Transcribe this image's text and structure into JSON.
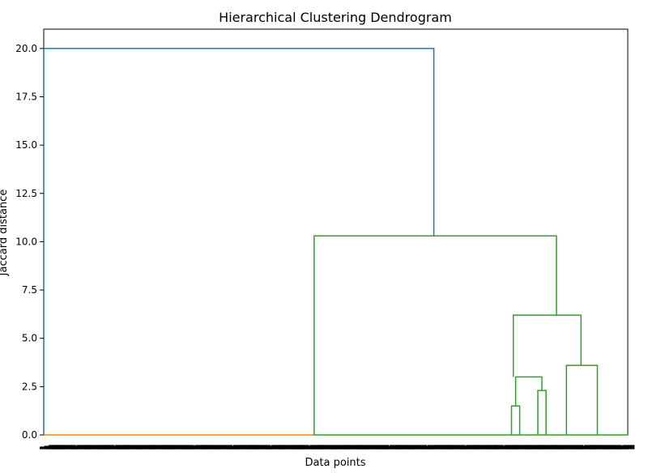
{
  "chart_data": {
    "type": "dendrogram",
    "title": "Hierarchical Clustering Dendrogram",
    "xlabel": "Data points",
    "ylabel": "Jaccard distance",
    "ylim": [
      0,
      21
    ],
    "yticks": [
      "0.0",
      "2.5",
      "5.0",
      "7.5",
      "10.0",
      "12.5",
      "15.0",
      "17.5",
      "20.0"
    ],
    "ytick_values": [
      0,
      2.5,
      5,
      7.5,
      10,
      12.5,
      15,
      17.5,
      20
    ],
    "grid": false,
    "links": [
      {
        "x": [
          0,
          0,
          66.8,
          66.8
        ],
        "y": [
          0,
          20.0,
          20.0,
          10.3
        ],
        "color": "#1f77b4"
      },
      {
        "x": [
          0,
          0,
          46.3,
          46.3
        ],
        "y": [
          0,
          0,
          0,
          0
        ],
        "color": "#ff7f0e"
      },
      {
        "x": [
          46.3,
          46.3,
          87.8,
          87.8
        ],
        "y": [
          0,
          10.3,
          10.3,
          6.2
        ],
        "color": "#2ca02c"
      },
      {
        "x": [
          80.4,
          80.4,
          92.0,
          92.0
        ],
        "y": [
          3.0,
          6.2,
          6.2,
          3.6
        ],
        "color": "#2ca02c"
      },
      {
        "x": [
          80.8,
          80.8,
          85.3,
          85.3
        ],
        "y": [
          1.5,
          3.0,
          3.0,
          2.3
        ],
        "color": "#2ca02c"
      },
      {
        "x": [
          80.1,
          80.1,
          81.5,
          81.5
        ],
        "y": [
          0,
          1.5,
          1.5,
          0
        ],
        "color": "#2ca02c"
      },
      {
        "x": [
          84.6,
          84.6,
          86.0,
          86.0
        ],
        "y": [
          0,
          2.3,
          2.3,
          0
        ],
        "color": "#2ca02c"
      },
      {
        "x": [
          89.5,
          89.5,
          94.8,
          94.8
        ],
        "y": [
          0,
          3.6,
          3.6,
          0
        ],
        "color": "#2ca02c"
      },
      {
        "x": [
          46.3,
          46.3,
          100,
          100
        ],
        "y": [
          0,
          0,
          0,
          0
        ],
        "color": "#2ca02c"
      }
    ],
    "leaf_label_color": "#000000",
    "x_range": [
      0,
      100
    ]
  }
}
